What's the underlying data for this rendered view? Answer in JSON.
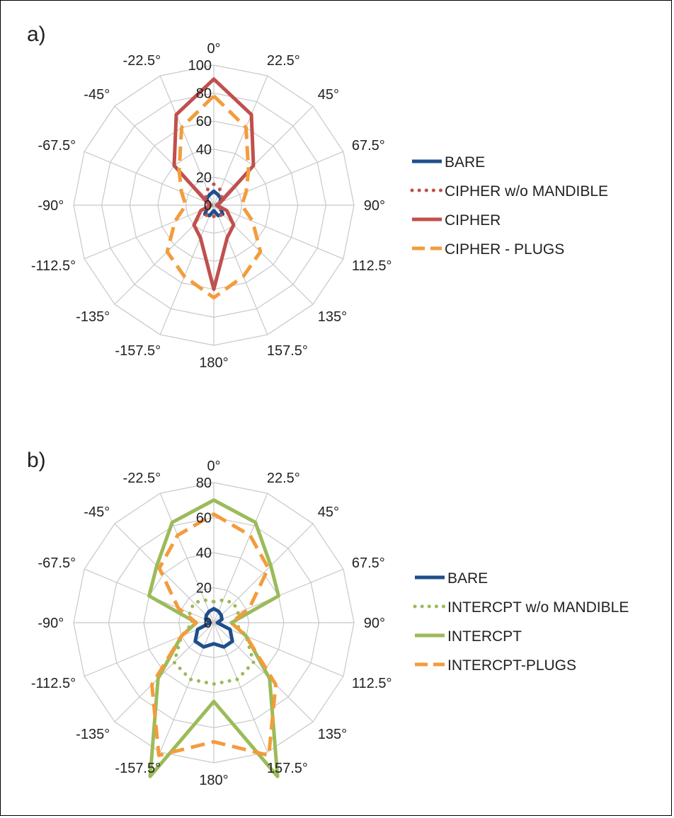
{
  "chart_data": [
    {
      "type": "radar",
      "panel_label": "a)",
      "axes": [
        "0°",
        "22.5°",
        "45°",
        "67.5°",
        "90°",
        "112.5°",
        "135°",
        "157.5°",
        "180°",
        "-157.5°",
        "-135°",
        "-112.5°",
        "-90°",
        "-67.5°",
        "-45°",
        "-22.5°"
      ],
      "angles_deg": [
        0,
        22.5,
        45,
        67.5,
        90,
        112.5,
        135,
        157.5,
        180,
        -157.5,
        -135,
        -112.5,
        -90,
        -67.5,
        -45,
        -22.5
      ],
      "r_ticks": [
        "0",
        "20",
        "40",
        "60",
        "80",
        "100"
      ],
      "r_max": 100,
      "grid": true,
      "legend_position": "right",
      "series": [
        {
          "name": "BARE",
          "color": "#1f4e8c",
          "style": "solid",
          "values": [
            10,
            8,
            7,
            5,
            2,
            5,
            9,
            8,
            4,
            8,
            9,
            5,
            2,
            5,
            7,
            8
          ]
        },
        {
          "name": "CIPHER w/o MANDIBLE",
          "color": "#c0504d",
          "style": "dotted",
          "values": [
            15,
            12,
            8,
            5,
            2,
            5,
            9,
            9,
            8,
            9,
            9,
            5,
            2,
            5,
            8,
            12
          ]
        },
        {
          "name": "CIPHER",
          "color": "#c0504d",
          "style": "solid",
          "values": [
            90,
            70,
            40,
            5,
            2,
            10,
            20,
            25,
            60,
            25,
            20,
            10,
            2,
            5,
            40,
            70
          ]
        },
        {
          "name": "CIPHER - PLUGS",
          "color": "#f39c3c",
          "style": "dashed",
          "values": [
            78,
            60,
            35,
            25,
            20,
            30,
            47,
            55,
            66,
            55,
            47,
            30,
            20,
            25,
            35,
            60
          ]
        }
      ]
    },
    {
      "type": "radar",
      "panel_label": "b)",
      "axes": [
        "0°",
        "22.5°",
        "45°",
        "67.5°",
        "90°",
        "112.5°",
        "135°",
        "157.5°",
        "180°",
        "-157.5°",
        "-135°",
        "-112.5°",
        "-90°",
        "-67.5°",
        "-45°",
        "-22.5°"
      ],
      "angles_deg": [
        0,
        22.5,
        45,
        67.5,
        90,
        112.5,
        135,
        157.5,
        180,
        -157.5,
        -135,
        -112.5,
        -90,
        -67.5,
        -45,
        -22.5
      ],
      "r_ticks": [
        "0",
        "20",
        "40",
        "60",
        "80"
      ],
      "r_max": 80,
      "grid": true,
      "legend_position": "right",
      "series": [
        {
          "name": "BARE",
          "color": "#1f4e8c",
          "style": "solid",
          "values": [
            8,
            7,
            6,
            5,
            2,
            10,
            15,
            15,
            12,
            15,
            15,
            10,
            2,
            5,
            6,
            7
          ]
        },
        {
          "name": "INTERCPT w/o MANDIBLE",
          "color": "#9bbb59",
          "style": "dotted",
          "values": [
            12,
            14,
            16,
            15,
            12,
            20,
            32,
            35,
            35,
            35,
            32,
            20,
            12,
            15,
            16,
            14
          ]
        },
        {
          "name": "INTERCPT",
          "color": "#9bbb59",
          "style": "solid",
          "values": [
            70,
            62,
            46,
            40,
            10,
            20,
            45,
            95,
            45,
            95,
            45,
            20,
            10,
            40,
            46,
            62
          ]
        },
        {
          "name": "INTERCPT-PLUGS",
          "color": "#f39c3c",
          "style": "dashed",
          "values": [
            62,
            54,
            44,
            22,
            10,
            20,
            50,
            82,
            68,
            82,
            50,
            20,
            10,
            22,
            44,
            54
          ]
        }
      ]
    }
  ]
}
